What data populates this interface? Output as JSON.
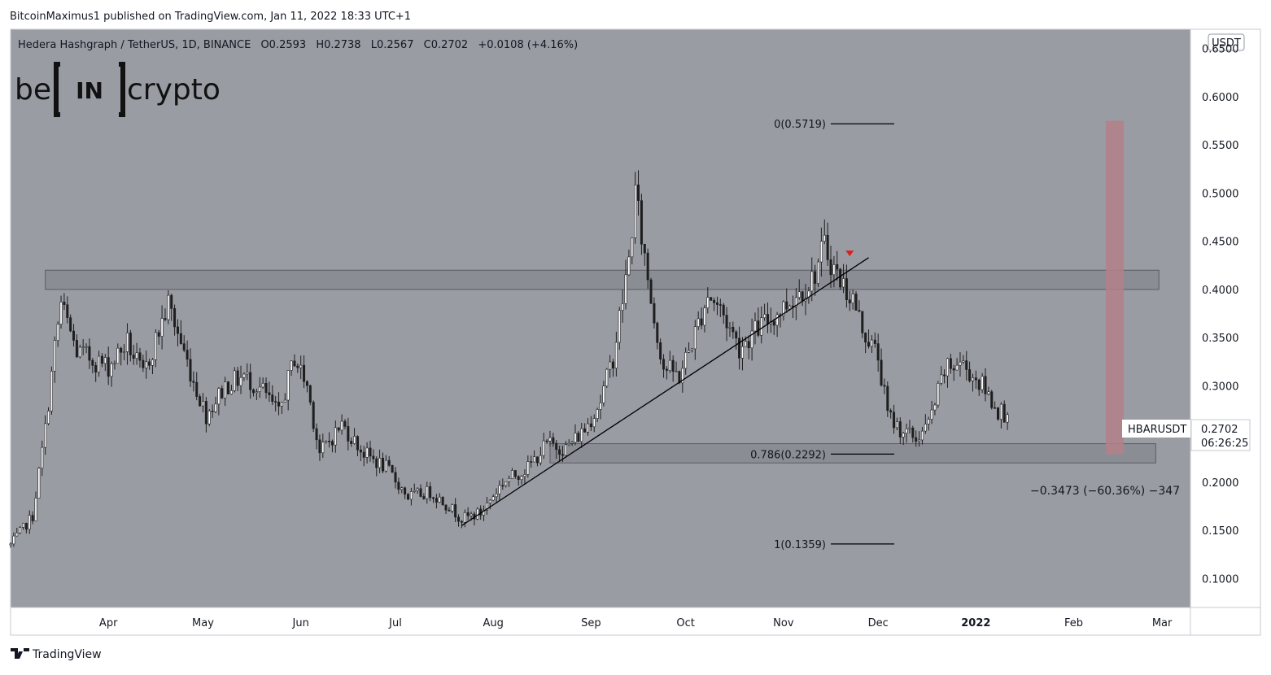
{
  "publisher_line": "BitcoinMaximus1 published on TradingView.com, Jan 11, 2022 18:33 UTC+1",
  "header": {
    "symbol": "Hedera Hashgraph / TetherUS, 1D, BINANCE",
    "o_label": "O",
    "o_value": "0.2593",
    "h_label": "H",
    "h_value": "0.2738",
    "l_label": "L",
    "l_value": "0.2567",
    "c_label": "C",
    "c_value": "0.2702",
    "change": "+0.0108 (+4.16%)"
  },
  "logo": {
    "left": "be",
    "mid": "IN",
    "right": "crypto"
  },
  "footer": {
    "brand": "TradingView"
  },
  "price_axis": {
    "currency": "USDT",
    "ticks": [
      "0.6500",
      "0.6000",
      "0.5500",
      "0.5000",
      "0.4500",
      "0.4000",
      "0.3500",
      "0.3000",
      "0.2500",
      "0.2000",
      "0.1500",
      "0.1000"
    ]
  },
  "time_axis": {
    "ticks": [
      "Apr",
      "May",
      "Jun",
      "Jul",
      "Aug",
      "Sep",
      "Oct",
      "Nov",
      "Dec",
      "2022",
      "Feb",
      "Mar"
    ]
  },
  "last_price": {
    "symbol": "HBARUSDT",
    "price": "0.2702",
    "countdown": "06:26:25"
  },
  "fib_levels": [
    {
      "label": "0(0.5719)",
      "price": 0.5719
    },
    {
      "label": "0.786(0.2292)",
      "price": 0.2292
    },
    {
      "label": "1(0.1359)",
      "price": 0.1359
    }
  ],
  "measure": {
    "label": "−0.3473 (−60.36%) −347",
    "from_price": 0.575,
    "to_price": 0.229
  },
  "colors": {
    "chart_bg": "#9a9ca4",
    "candle_fill": "#ffffff",
    "candle_outline": "#1e1e1e",
    "zone_fill": "#8a8c93",
    "measure_bar": "#b48088",
    "marker_red": "#e01c1c"
  },
  "chart_data": {
    "type": "candlestick",
    "title": "Hedera Hashgraph / TetherUS, 1D, BINANCE",
    "ylabel": "USDT",
    "y_scale": "linear",
    "ylim": [
      0.07,
      0.67
    ],
    "grid": false,
    "x_range": [
      "2021-03-01",
      "2022-03-10"
    ],
    "x_ticks": [
      "Apr",
      "May",
      "Jun",
      "Jul",
      "Aug",
      "Sep",
      "Oct",
      "Nov",
      "Dec",
      "2022",
      "Feb",
      "Mar"
    ],
    "price_path": [
      [
        "2021-03-01",
        0.135
      ],
      [
        "2021-03-08",
        0.165
      ],
      [
        "2021-03-12",
        0.255
      ],
      [
        "2021-03-15",
        0.34
      ],
      [
        "2021-03-17",
        0.385
      ],
      [
        "2021-03-22",
        0.335
      ],
      [
        "2021-04-01",
        0.32
      ],
      [
        "2021-04-07",
        0.345
      ],
      [
        "2021-04-12",
        0.31
      ],
      [
        "2021-04-20",
        0.385
      ],
      [
        "2021-04-28",
        0.305
      ],
      [
        "2021-05-02",
        0.27
      ],
      [
        "2021-05-08",
        0.3
      ],
      [
        "2021-05-14",
        0.31
      ],
      [
        "2021-05-20",
        0.295
      ],
      [
        "2021-05-25",
        0.27
      ],
      [
        "2021-05-30",
        0.33
      ],
      [
        "2021-06-03",
        0.3
      ],
      [
        "2021-06-07",
        0.23
      ],
      [
        "2021-06-14",
        0.26
      ],
      [
        "2021-06-21",
        0.23
      ],
      [
        "2021-06-28",
        0.215
      ],
      [
        "2021-07-05",
        0.185
      ],
      [
        "2021-07-12",
        0.19
      ],
      [
        "2021-07-18",
        0.175
      ],
      [
        "2021-07-22",
        0.162
      ],
      [
        "2021-07-28",
        0.168
      ],
      [
        "2021-08-04",
        0.2
      ],
      [
        "2021-08-12",
        0.215
      ],
      [
        "2021-08-18",
        0.24
      ],
      [
        "2021-08-24",
        0.235
      ],
      [
        "2021-08-30",
        0.255
      ],
      [
        "2021-09-04",
        0.285
      ],
      [
        "2021-09-08",
        0.33
      ],
      [
        "2021-09-13",
        0.43
      ],
      [
        "2021-09-15",
        0.5
      ],
      [
        "2021-09-17",
        0.455
      ],
      [
        "2021-09-21",
        0.37
      ],
      [
        "2021-09-24",
        0.32
      ],
      [
        "2021-09-29",
        0.31
      ],
      [
        "2021-10-04",
        0.355
      ],
      [
        "2021-10-08",
        0.395
      ],
      [
        "2021-10-12",
        0.38
      ],
      [
        "2021-10-18",
        0.34
      ],
      [
        "2021-10-24",
        0.36
      ],
      [
        "2021-10-30",
        0.375
      ],
      [
        "2021-11-05",
        0.395
      ],
      [
        "2021-11-10",
        0.41
      ],
      [
        "2021-11-14",
        0.445
      ],
      [
        "2021-11-18",
        0.415
      ],
      [
        "2021-11-23",
        0.39
      ],
      [
        "2021-11-26",
        0.36
      ],
      [
        "2021-12-01",
        0.33
      ],
      [
        "2021-12-04",
        0.27
      ],
      [
        "2021-12-08",
        0.255
      ],
      [
        "2021-12-13",
        0.245
      ],
      [
        "2021-12-17",
        0.26
      ],
      [
        "2021-12-22",
        0.315
      ],
      [
        "2021-12-27",
        0.325
      ],
      [
        "2022-01-03",
        0.3
      ],
      [
        "2022-01-08",
        0.275
      ],
      [
        "2022-01-11",
        0.2702
      ]
    ],
    "annotations": [
      {
        "type": "horizontal_zone",
        "from": "2021-03-12",
        "to": "2022-02-28",
        "low": 0.4,
        "high": 0.42
      },
      {
        "type": "horizontal_zone",
        "from": "2021-08-19",
        "to": "2022-02-27",
        "low": 0.22,
        "high": 0.24
      },
      {
        "type": "ascending_trendline",
        "from": [
          "2021-07-22",
          0.155
        ],
        "to": [
          "2021-11-28",
          0.433
        ]
      },
      {
        "type": "marker",
        "date": "2021-11-22",
        "price": 0.437,
        "shape": "down-triangle"
      },
      {
        "type": "measure_bar",
        "date": "2022-02-14",
        "from_price": 0.575,
        "to_price": 0.229
      }
    ]
  }
}
